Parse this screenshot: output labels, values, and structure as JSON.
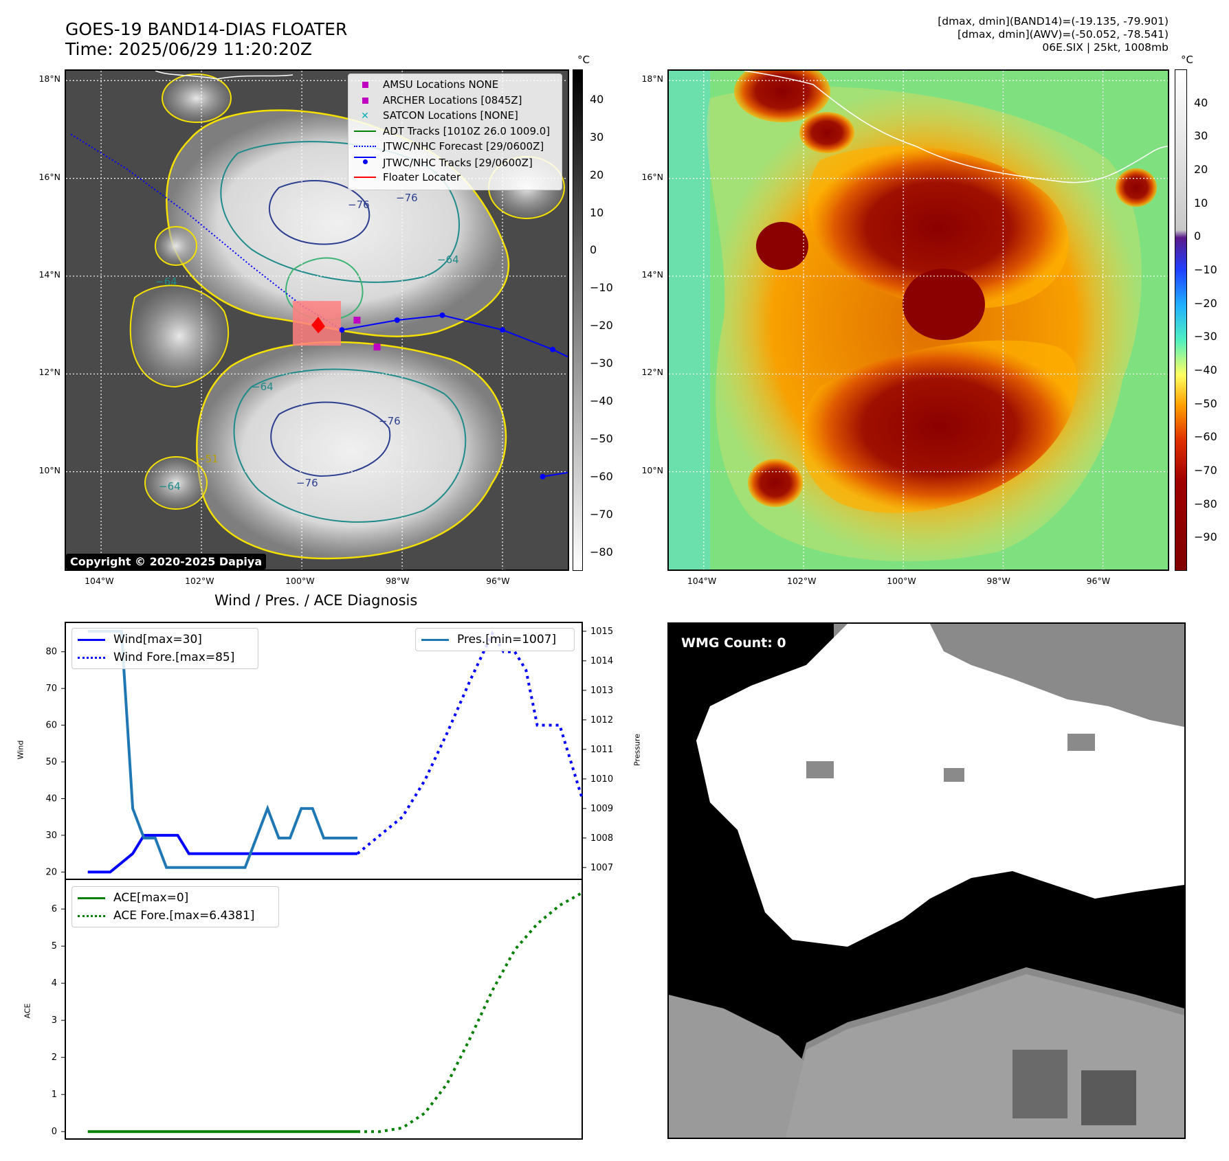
{
  "header": {
    "title_line1": "GOES-19 BAND14-DIAS FLOATER",
    "title_line2": "Time: 2025/06/29 11:20:20Z",
    "info_line1": "[dmax, dmin](BAND14)=(-19.135, -79.901)",
    "info_line2": "[dmax, dmin](AWV)=(-50.052, -78.541)",
    "info_line3": "06E.SIX | 25kt, 1008mb"
  },
  "map": {
    "lat_labels": [
      "18°N",
      "16°N",
      "14°N",
      "12°N",
      "10°N"
    ],
    "lon_labels": [
      "104°W",
      "102°W",
      "100°W",
      "98°W",
      "96°W"
    ],
    "contour_labels": [
      "−76",
      "−76",
      "−76",
      "−76",
      "−64",
      "−64",
      "−64",
      "−64",
      "−51"
    ],
    "copyright": "Copyright © 2020-2025 Dapiya",
    "legend": [
      {
        "label": "AMSU Locations NONE",
        "color": "#c000c0",
        "marker": "square"
      },
      {
        "label": "ARCHER Locations [0845Z]",
        "color": "#c000c0",
        "marker": "square"
      },
      {
        "label": "SATCON Locations [NONE]",
        "color": "#00b0b0",
        "marker": "x"
      },
      {
        "label": "ADT Tracks [1010Z 26.0 1009.0]",
        "color": "#008000",
        "marker": "line"
      },
      {
        "label": "JTWC/NHC Forecast [29/0600Z]",
        "color": "#0000ff",
        "marker": "dotted"
      },
      {
        "label": "JTWC/NHC Tracks [29/0600Z]",
        "color": "#0000ff",
        "marker": "dotline"
      },
      {
        "label": "Floater Locater",
        "color": "#ff0000",
        "marker": "line"
      }
    ],
    "track_points": [
      [
        -99.2,
        12.9
      ],
      [
        -98.1,
        13.1
      ],
      [
        -97.2,
        13.2
      ],
      [
        -96.0,
        12.9
      ],
      [
        -95.0,
        12.5
      ],
      [
        -94.6,
        12.3
      ]
    ],
    "track_south": [
      [
        -95.2,
        9.9
      ],
      [
        -94.6,
        10.0
      ]
    ],
    "forecast_track": [
      [
        -104.6,
        16.9
      ],
      [
        -103.5,
        16.2
      ],
      [
        -102.3,
        15.3
      ],
      [
        -101.0,
        14.2
      ],
      [
        -100.0,
        13.4
      ],
      [
        -99.2,
        12.9
      ]
    ],
    "archer_points": [
      [
        -98.5,
        12.55
      ],
      [
        -98.9,
        13.1
      ]
    ],
    "floater_center": [
      -99.7,
      13.0
    ],
    "colorbar_unit": "°C",
    "colorbar_ticks": [
      "40",
      "30",
      "20",
      "10",
      "0",
      "−10",
      "−20",
      "−30",
      "−40",
      "−50",
      "−60",
      "−70",
      "−80"
    ],
    "colorbar_values": [
      40,
      30,
      20,
      10,
      0,
      -10,
      -20,
      -30,
      -40,
      -50,
      -60,
      -70,
      -80
    ],
    "colorbar_range": [
      -85,
      48
    ]
  },
  "awv": {
    "lat_labels": [
      "18°N",
      "16°N",
      "14°N",
      "12°N",
      "10°N"
    ],
    "lon_labels": [
      "104°W",
      "102°W",
      "100°W",
      "98°W",
      "96°W"
    ],
    "colorbar_unit": "°C",
    "colorbar_ticks": [
      "40",
      "30",
      "20",
      "10",
      "0",
      "−10",
      "−20",
      "−30",
      "−40",
      "−50",
      "−60",
      "−70",
      "−80",
      "−90"
    ],
    "colorbar_values": [
      40,
      30,
      20,
      10,
      0,
      -10,
      -20,
      -30,
      -40,
      -50,
      -60,
      -70,
      -80,
      -90
    ],
    "colorbar_range": [
      -100,
      50
    ]
  },
  "wmg": {
    "label": "WMG Count: 0"
  },
  "chart_data": [
    {
      "type": "line",
      "title": "Wind / Pres. / ACE Diagnosis",
      "ylabel": "Wind",
      "ylabel_right": "Pressure",
      "ylim": [
        18,
        88
      ],
      "ylim_right": [
        1006.6,
        1015.3
      ],
      "xlim": [
        0,
        46
      ],
      "y_ticks": [
        20,
        30,
        40,
        50,
        60,
        70,
        80
      ],
      "y_ticks_right": [
        1007,
        1008,
        1009,
        1010,
        1011,
        1012,
        1013,
        1014,
        1015
      ],
      "series": [
        {
          "name": "Wind[max=30]",
          "color": "#0000ff",
          "style": "solid",
          "axis": "left",
          "x": [
            2,
            4,
            6,
            7,
            8,
            9,
            10,
            11,
            12,
            13,
            14,
            15,
            16,
            17,
            18,
            19,
            20,
            21,
            22,
            23,
            24,
            25,
            26
          ],
          "values": [
            20,
            20,
            25,
            30,
            30,
            30,
            30,
            25,
            25,
            25,
            25,
            25,
            25,
            25,
            25,
            25,
            25,
            25,
            25,
            25,
            25,
            25,
            25
          ]
        },
        {
          "name": "Wind Fore.[max=85]",
          "color": "#0000ff",
          "style": "dotted",
          "axis": "left",
          "x": [
            26,
            28,
            30,
            32,
            34,
            36,
            38,
            39,
            40,
            41,
            42,
            43,
            44,
            45,
            46
          ],
          "values": [
            25,
            30,
            35,
            45,
            58,
            72,
            85,
            80,
            80,
            75,
            60,
            60,
            60,
            50,
            40
          ]
        },
        {
          "name": "Pres.[min=1007]",
          "color": "#1f77b4",
          "style": "solid",
          "axis": "right",
          "x": [
            2,
            5,
            6,
            7,
            8,
            9,
            10,
            11,
            12,
            13,
            14,
            15,
            16,
            17,
            18,
            19,
            20,
            21,
            22,
            23,
            24,
            25,
            26
          ],
          "values": [
            1015,
            1015,
            1009,
            1008,
            1008,
            1007,
            1007,
            1007,
            1007,
            1007,
            1007,
            1007,
            1007,
            1008,
            1009,
            1008,
            1008,
            1009,
            1009,
            1008,
            1008,
            1008,
            1008
          ]
        }
      ]
    },
    {
      "type": "line",
      "ylabel": "ACE",
      "ylim": [
        -0.2,
        6.8
      ],
      "xlim": [
        0,
        46
      ],
      "y_ticks": [
        0,
        1,
        2,
        3,
        4,
        5,
        6
      ],
      "series": [
        {
          "name": "ACE[max=0]",
          "color": "#008000",
          "style": "solid",
          "x": [
            2,
            26
          ],
          "values": [
            0,
            0
          ]
        },
        {
          "name": "ACE Fore.[max=6.4381]",
          "color": "#008000",
          "style": "dotted",
          "x": [
            26,
            28,
            30,
            32,
            34,
            36,
            38,
            40,
            42,
            44,
            46
          ],
          "values": [
            0,
            0,
            0.1,
            0.5,
            1.3,
            2.5,
            3.8,
            4.9,
            5.6,
            6.1,
            6.4381
          ]
        }
      ]
    }
  ]
}
